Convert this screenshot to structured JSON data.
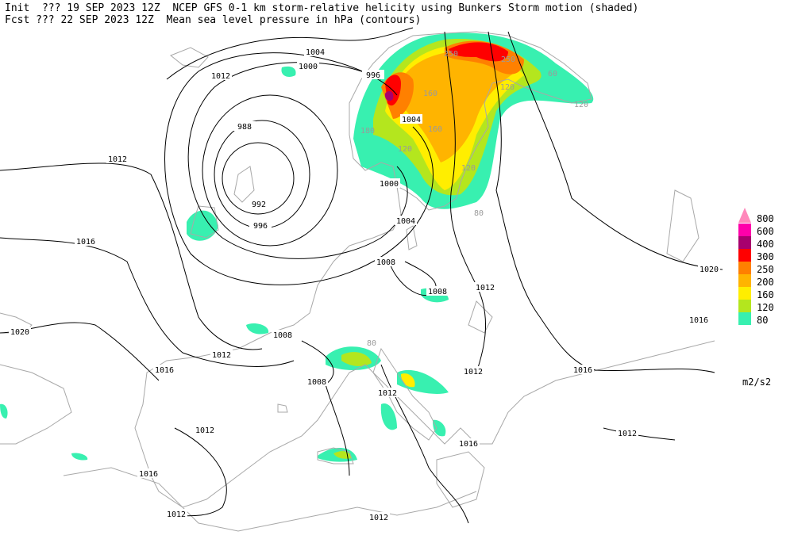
{
  "header": {
    "line1": "Init  ??? 19 SEP 2023 12Z  NCEP GFS 0-1 km storm-relative helicity using Bunkers Storm motion (shaded)",
    "line2": "Fcst ??? 22 SEP 2023 12Z  Mean sea level pressure in hPa (contours)"
  },
  "legend": {
    "levels": [
      800,
      600,
      400,
      300,
      250,
      200,
      160,
      120,
      80
    ],
    "colors": [
      "#ff88bb",
      "#ff00aa",
      "#a8006e",
      "#ff0000",
      "#ff8000",
      "#ffb400",
      "#ffee00",
      "#b4e61e",
      "#38f0b0"
    ],
    "unit": "m2/s2"
  },
  "map": {
    "pressure_labels": [
      1004,
      1012,
      1000,
      996,
      988,
      992,
      996,
      1012,
      1016,
      1000,
      1004,
      1004,
      1008,
      1008,
      1012,
      1020,
      1016,
      1020,
      1008,
      1012,
      1016,
      1008,
      1012,
      1012,
      1016,
      1012,
      1012,
      1016,
      1016,
      1012,
      1012
    ],
    "helicity_labels": [
      250,
      250,
      160,
      160,
      180,
      120,
      120,
      120,
      60,
      80,
      120,
      80
    ]
  }
}
